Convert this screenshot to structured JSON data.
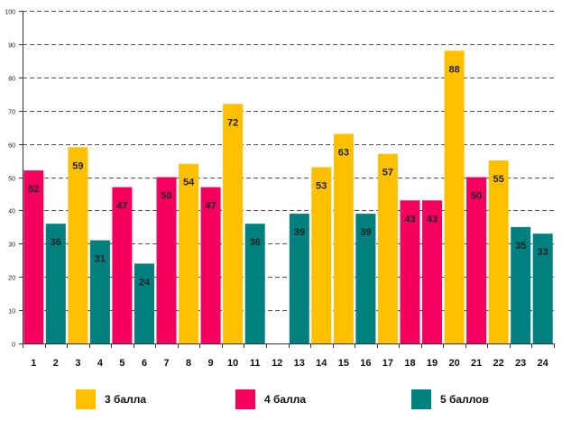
{
  "chart_data": {
    "type": "bar",
    "title": "",
    "xlabel": "",
    "ylabel": "",
    "ylim": [
      0,
      100
    ],
    "yticks": [
      0,
      10,
      20,
      30,
      40,
      50,
      60,
      70,
      80,
      90,
      100
    ],
    "grid": true,
    "categories": [
      "1",
      "2",
      "3",
      "4",
      "5",
      "6",
      "7",
      "8",
      "9",
      "10",
      "11",
      "12",
      "13",
      "14",
      "15",
      "16",
      "17",
      "18",
      "19",
      "20",
      "21",
      "22",
      "23",
      "24"
    ],
    "values": [
      52,
      36,
      59,
      31,
      47,
      24,
      50,
      54,
      47,
      72,
      36,
      null,
      39,
      53,
      63,
      39,
      57,
      43,
      43,
      88,
      50,
      55,
      35,
      33
    ],
    "groups": [
      "4 балла",
      "5 баллов",
      "3 балла",
      "5 баллов",
      "4 балла",
      "5 баллов",
      "4 балла",
      "3 балла",
      "4 балла",
      "3 балла",
      "5 баллов",
      null,
      "5 баллов",
      "3 балла",
      "3 балла",
      "5 баллов",
      "3 балла",
      "4 балла",
      "4 балла",
      "3 балла",
      "4 балла",
      "3 балла",
      "5 баллов",
      "5 баллов"
    ],
    "legend": [
      {
        "label": "3 балла",
        "color": "#FFC000"
      },
      {
        "label": "4 балла",
        "color": "#F5005F"
      },
      {
        "label": "5 баллов",
        "color": "#00807E"
      }
    ]
  }
}
